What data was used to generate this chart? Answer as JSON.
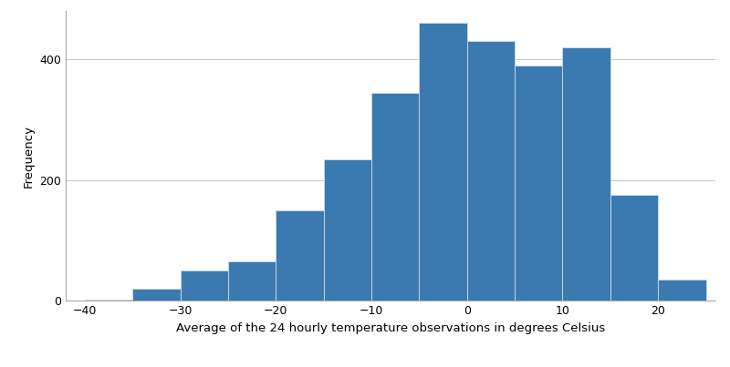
{
  "bin_edges": [
    -40,
    -35,
    -30,
    -25,
    -20,
    -15,
    -10,
    -5,
    0,
    5,
    10,
    15,
    20,
    25
  ],
  "frequencies": [
    2,
    20,
    50,
    65,
    150,
    235,
    345,
    460,
    430,
    390,
    420,
    175,
    35
  ],
  "bar_color": "#3a7ab0",
  "bar_edgecolor": "#c8d8e8",
  "xlabel": "Average of the 24 hourly temperature observations in degrees Celsius",
  "ylabel": "Frequency",
  "xlim": [
    -42,
    26
  ],
  "ylim": [
    0,
    480
  ],
  "yticks": [
    0,
    200,
    400
  ],
  "xticks": [
    -40,
    -30,
    -20,
    -10,
    0,
    10,
    20
  ],
  "grid_color": "#bbbbbb",
  "grid_linewidth": 0.6,
  "background_color": "#ffffff",
  "xlabel_fontsize": 9.5,
  "ylabel_fontsize": 9.5,
  "tick_fontsize": 9
}
